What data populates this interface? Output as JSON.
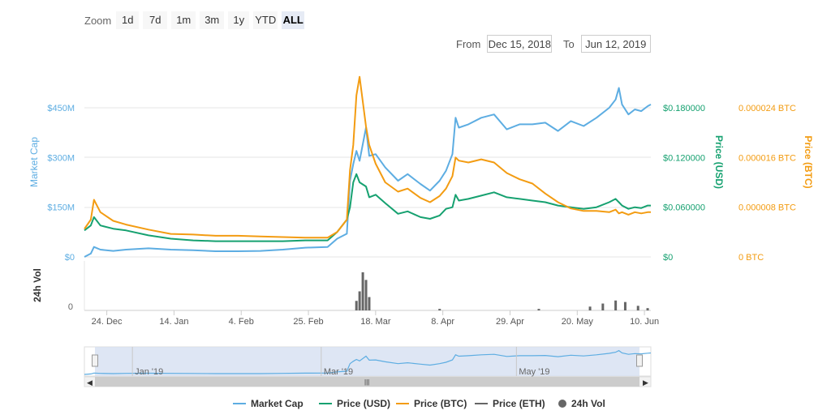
{
  "zoom": {
    "label": "Zoom",
    "buttons": [
      "1d",
      "7d",
      "1m",
      "3m",
      "1y",
      "YTD",
      "ALL"
    ],
    "active": "ALL"
  },
  "range": {
    "from_label": "From",
    "from_value": "Dec 15, 2018",
    "to_label": "To",
    "to_value": "Jun 12, 2019"
  },
  "colors": {
    "market_cap": "#5DADE2",
    "price_usd": "#16A170",
    "price_btc": "#F39C12",
    "price_eth": "#666666",
    "volume": "#666666",
    "navigator_fill": "#D3DDF0"
  },
  "chart_data": {
    "type": "line",
    "x_type": "date",
    "x_range": [
      "2018-12-17",
      "2019-06-12"
    ],
    "x_ticks": [
      {
        "label": "24. Dec",
        "date": "2018-12-24"
      },
      {
        "label": "14. Jan",
        "date": "2019-01-14"
      },
      {
        "label": "4. Feb",
        "date": "2019-02-04"
      },
      {
        "label": "25. Feb",
        "date": "2019-02-25"
      },
      {
        "label": "18. Mar",
        "date": "2019-03-18"
      },
      {
        "label": "8. Apr",
        "date": "2019-04-08"
      },
      {
        "label": "29. Apr",
        "date": "2019-04-29"
      },
      {
        "label": "20. May",
        "date": "2019-05-20"
      },
      {
        "label": "10. Jun",
        "date": "2019-06-10"
      }
    ],
    "axes": {
      "market_cap": {
        "title": "Market Cap",
        "ticks": [
          "$0",
          "$150M",
          "$300M",
          "$450M"
        ],
        "tick_values": [
          0,
          150,
          300,
          450
        ],
        "range": [
          0,
          450
        ],
        "unit": "M USD"
      },
      "price_usd": {
        "title": "Price (USD)",
        "ticks": [
          "$0",
          "$0.060000",
          "$0.120000",
          "$0.180000"
        ],
        "tick_values": [
          0,
          0.06,
          0.12,
          0.18
        ],
        "range": [
          0,
          0.18
        ]
      },
      "price_btc": {
        "title": "Price (BTC)",
        "ticks": [
          "0 BTC",
          "0.000008 BTC",
          "0.000016 BTC",
          "0.000024 BTC"
        ],
        "tick_values": [
          0,
          8e-06,
          1.6e-05,
          2.4e-05
        ],
        "range": [
          0,
          2.4e-05
        ]
      },
      "volume": {
        "title": "24h Vol",
        "ticks": [
          "0"
        ]
      }
    },
    "series": [
      {
        "name": "Market Cap",
        "axis": "market_cap",
        "points": [
          [
            "2018-12-17",
            0
          ],
          [
            "2018-12-19",
            10
          ],
          [
            "2018-12-20",
            30
          ],
          [
            "2018-12-22",
            22
          ],
          [
            "2018-12-26",
            18
          ],
          [
            "2018-12-30",
            22
          ],
          [
            "2019-01-06",
            26
          ],
          [
            "2019-01-13",
            22
          ],
          [
            "2019-01-20",
            20
          ],
          [
            "2019-01-27",
            17
          ],
          [
            "2019-02-03",
            17
          ],
          [
            "2019-02-10",
            18
          ],
          [
            "2019-02-17",
            22
          ],
          [
            "2019-02-24",
            28
          ],
          [
            "2019-03-03",
            30
          ],
          [
            "2019-03-06",
            55
          ],
          [
            "2019-03-09",
            70
          ],
          [
            "2019-03-10",
            230
          ],
          [
            "2019-03-11",
            280
          ],
          [
            "2019-03-12",
            320
          ],
          [
            "2019-03-13",
            290
          ],
          [
            "2019-03-15",
            390
          ],
          [
            "2019-03-16",
            305
          ],
          [
            "2019-03-18",
            310
          ],
          [
            "2019-03-21",
            270
          ],
          [
            "2019-03-25",
            230
          ],
          [
            "2019-03-28",
            250
          ],
          [
            "2019-04-01",
            220
          ],
          [
            "2019-04-04",
            200
          ],
          [
            "2019-04-07",
            230
          ],
          [
            "2019-04-09",
            260
          ],
          [
            "2019-04-11",
            310
          ],
          [
            "2019-04-12",
            420
          ],
          [
            "2019-04-13",
            390
          ],
          [
            "2019-04-16",
            400
          ],
          [
            "2019-04-20",
            420
          ],
          [
            "2019-04-24",
            430
          ],
          [
            "2019-04-28",
            385
          ],
          [
            "2019-05-02",
            400
          ],
          [
            "2019-05-06",
            400
          ],
          [
            "2019-05-10",
            405
          ],
          [
            "2019-05-14",
            380
          ],
          [
            "2019-05-18",
            410
          ],
          [
            "2019-05-22",
            395
          ],
          [
            "2019-05-26",
            420
          ],
          [
            "2019-05-30",
            450
          ],
          [
            "2019-06-01",
            475
          ],
          [
            "2019-06-02",
            510
          ],
          [
            "2019-06-03",
            460
          ],
          [
            "2019-06-05",
            430
          ],
          [
            "2019-06-07",
            445
          ],
          [
            "2019-06-09",
            440
          ],
          [
            "2019-06-11",
            455
          ],
          [
            "2019-06-12",
            460
          ]
        ]
      },
      {
        "name": "Price (USD)",
        "axis": "price_usd",
        "points": [
          [
            "2018-12-17",
            0.032
          ],
          [
            "2018-12-19",
            0.038
          ],
          [
            "2018-12-20",
            0.048
          ],
          [
            "2018-12-22",
            0.038
          ],
          [
            "2018-12-26",
            0.034
          ],
          [
            "2018-12-30",
            0.032
          ],
          [
            "2019-01-06",
            0.026
          ],
          [
            "2019-01-13",
            0.022
          ],
          [
            "2019-01-20",
            0.02
          ],
          [
            "2019-01-27",
            0.019
          ],
          [
            "2019-02-03",
            0.019
          ],
          [
            "2019-02-10",
            0.019
          ],
          [
            "2019-02-17",
            0.019
          ],
          [
            "2019-02-24",
            0.02
          ],
          [
            "2019-03-03",
            0.02
          ],
          [
            "2019-03-06",
            0.03
          ],
          [
            "2019-03-09",
            0.045
          ],
          [
            "2019-03-10",
            0.06
          ],
          [
            "2019-03-11",
            0.09
          ],
          [
            "2019-03-12",
            0.1
          ],
          [
            "2019-03-13",
            0.09
          ],
          [
            "2019-03-15",
            0.085
          ],
          [
            "2019-03-16",
            0.072
          ],
          [
            "2019-03-18",
            0.075
          ],
          [
            "2019-03-21",
            0.065
          ],
          [
            "2019-03-25",
            0.052
          ],
          [
            "2019-03-28",
            0.055
          ],
          [
            "2019-04-01",
            0.048
          ],
          [
            "2019-04-04",
            0.046
          ],
          [
            "2019-04-07",
            0.05
          ],
          [
            "2019-04-09",
            0.058
          ],
          [
            "2019-04-11",
            0.06
          ],
          [
            "2019-04-12",
            0.075
          ],
          [
            "2019-04-13",
            0.068
          ],
          [
            "2019-04-16",
            0.07
          ],
          [
            "2019-04-20",
            0.074
          ],
          [
            "2019-04-24",
            0.078
          ],
          [
            "2019-04-28",
            0.072
          ],
          [
            "2019-05-02",
            0.07
          ],
          [
            "2019-05-06",
            0.068
          ],
          [
            "2019-05-10",
            0.066
          ],
          [
            "2019-05-14",
            0.062
          ],
          [
            "2019-05-18",
            0.06
          ],
          [
            "2019-05-22",
            0.058
          ],
          [
            "2019-05-26",
            0.06
          ],
          [
            "2019-05-30",
            0.066
          ],
          [
            "2019-06-01",
            0.07
          ],
          [
            "2019-06-02",
            0.066
          ],
          [
            "2019-06-03",
            0.062
          ],
          [
            "2019-06-05",
            0.058
          ],
          [
            "2019-06-07",
            0.06
          ],
          [
            "2019-06-09",
            0.059
          ],
          [
            "2019-06-11",
            0.062
          ],
          [
            "2019-06-12",
            0.062
          ]
        ]
      },
      {
        "name": "Price (BTC)",
        "axis": "price_btc",
        "points": [
          [
            "2018-12-17",
            4.5e-06
          ],
          [
            "2018-12-19",
            6e-06
          ],
          [
            "2018-12-20",
            9.2e-06
          ],
          [
            "2018-12-22",
            7.2e-06
          ],
          [
            "2018-12-26",
            5.8e-06
          ],
          [
            "2018-12-30",
            5.2e-06
          ],
          [
            "2019-01-06",
            4.4e-06
          ],
          [
            "2019-01-13",
            3.7e-06
          ],
          [
            "2019-01-20",
            3.6e-06
          ],
          [
            "2019-01-27",
            3.4e-06
          ],
          [
            "2019-02-03",
            3.4e-06
          ],
          [
            "2019-02-10",
            3.3e-06
          ],
          [
            "2019-02-17",
            3.2e-06
          ],
          [
            "2019-02-24",
            3.1e-06
          ],
          [
            "2019-03-03",
            3.1e-06
          ],
          [
            "2019-03-06",
            4e-06
          ],
          [
            "2019-03-09",
            6e-06
          ],
          [
            "2019-03-10",
            1.4e-05
          ],
          [
            "2019-03-11",
            1.8e-05
          ],
          [
            "2019-03-12",
            2.6e-05
          ],
          [
            "2019-03-13",
            2.9e-05
          ],
          [
            "2019-03-15",
            2.1e-05
          ],
          [
            "2019-03-16",
            1.8e-05
          ],
          [
            "2019-03-18",
            1.5e-05
          ],
          [
            "2019-03-21",
            1.2e-05
          ],
          [
            "2019-03-25",
            1.05e-05
          ],
          [
            "2019-03-28",
            1.1e-05
          ],
          [
            "2019-04-01",
            9.5e-06
          ],
          [
            "2019-04-04",
            8.8e-06
          ],
          [
            "2019-04-07",
            9.8e-06
          ],
          [
            "2019-04-09",
            1.1e-05
          ],
          [
            "2019-04-11",
            1.3e-05
          ],
          [
            "2019-04-12",
            1.6e-05
          ],
          [
            "2019-04-13",
            1.55e-05
          ],
          [
            "2019-04-16",
            1.52e-05
          ],
          [
            "2019-04-20",
            1.57e-05
          ],
          [
            "2019-04-24",
            1.52e-05
          ],
          [
            "2019-04-28",
            1.35e-05
          ],
          [
            "2019-05-02",
            1.25e-05
          ],
          [
            "2019-05-06",
            1.18e-05
          ],
          [
            "2019-05-10",
            1.02e-05
          ],
          [
            "2019-05-14",
            8.8e-06
          ],
          [
            "2019-05-18",
            7.8e-06
          ],
          [
            "2019-05-22",
            7.4e-06
          ],
          [
            "2019-05-26",
            7.4e-06
          ],
          [
            "2019-05-30",
            7.2e-06
          ],
          [
            "2019-06-01",
            7.6e-06
          ],
          [
            "2019-06-02",
            7e-06
          ],
          [
            "2019-06-03",
            7.2e-06
          ],
          [
            "2019-06-05",
            6.8e-06
          ],
          [
            "2019-06-07",
            7.2e-06
          ],
          [
            "2019-06-09",
            7e-06
          ],
          [
            "2019-06-11",
            7.2e-06
          ],
          [
            "2019-06-12",
            7.2e-06
          ]
        ]
      }
    ],
    "volume_points": [
      [
        "2019-03-12",
        0.25
      ],
      [
        "2019-03-13",
        0.5
      ],
      [
        "2019-03-14",
        1.0
      ],
      [
        "2019-03-15",
        0.8
      ],
      [
        "2019-03-16",
        0.35
      ],
      [
        "2019-04-07",
        0.04
      ],
      [
        "2019-05-08",
        0.04
      ],
      [
        "2019-05-24",
        0.1
      ],
      [
        "2019-05-28",
        0.18
      ],
      [
        "2019-06-01",
        0.26
      ],
      [
        "2019-06-04",
        0.22
      ],
      [
        "2019-06-08",
        0.12
      ],
      [
        "2019-06-11",
        0.06
      ]
    ],
    "navigator": {
      "labels": [
        {
          "label": "Jan '19",
          "date": "2019-01-01"
        },
        {
          "label": "Mar '19",
          "date": "2019-03-01"
        },
        {
          "label": "May '19",
          "date": "2019-05-01"
        }
      ]
    },
    "legend": {
      "position": "bottom",
      "items": [
        "Market Cap",
        "Price (USD)",
        "Price (BTC)",
        "Price (ETH)",
        "24h Vol"
      ]
    }
  }
}
